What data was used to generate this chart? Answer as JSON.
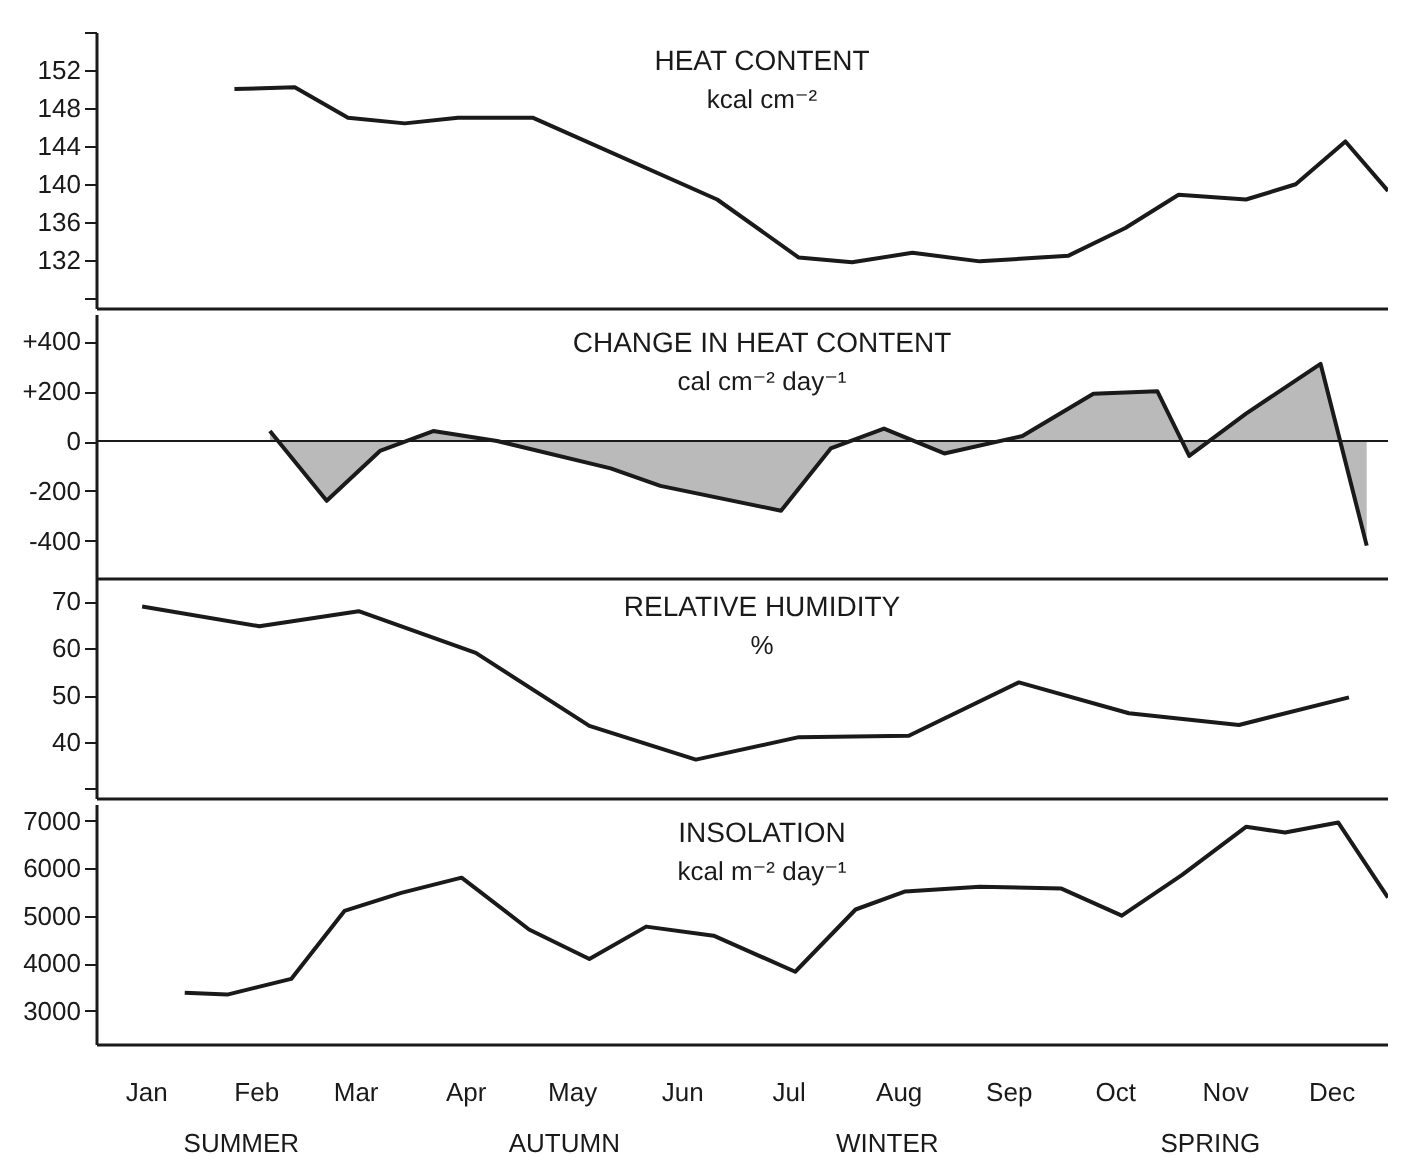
{
  "chart_data": [
    {
      "type": "line",
      "title": "HEAT CONTENT",
      "subtitle": "kcal cm⁻²",
      "tick_labels": "y",
      "xlim": [
        "--01-01",
        "--12-31"
      ],
      "xticks": [
        {
          "value": "--01-15",
          "label": "Jan"
        },
        {
          "value": "--02-15",
          "label": "Feb"
        },
        {
          "value": "--03-15",
          "label": "Mar"
        },
        {
          "value": "--04-15",
          "label": "Apr"
        },
        {
          "value": "--05-15",
          "label": "May"
        },
        {
          "value": "--06-15",
          "label": "Jun"
        },
        {
          "value": "--07-15",
          "label": "Jul"
        },
        {
          "value": "--08-15",
          "label": "Aug"
        },
        {
          "value": "--09-15",
          "label": "Sep"
        },
        {
          "value": "--10-15",
          "label": "Oct"
        },
        {
          "value": "--11-15",
          "label": "Nov"
        },
        {
          "value": "--12-15",
          "label": "Dec"
        }
      ],
      "ylim": [
        127,
        156
      ],
      "yticks": [
        {
          "value": 128,
          "label": null
        },
        132,
        136,
        140,
        144,
        148,
        152,
        {
          "value": 156,
          "label": null
        }
      ],
      "x": [
        "--02-09",
        "--02-26",
        "--03-13",
        "--03-29",
        "--04-13",
        "--05-04",
        "--06-25",
        "--07-18",
        "--08-02",
        "--08-19",
        "--09-07",
        "--10-02",
        "--10-18",
        "--11-02",
        "--11-21",
        "--12-05",
        "--12-19",
        "--12-31"
      ],
      "series": [
        {
          "color": "#1a1a1a",
          "values": [
            150,
            150.2,
            147,
            146.4,
            147,
            147,
            138.4,
            132.3,
            131.8,
            132.8,
            131.9,
            132.5,
            135.4,
            138.9,
            138.4,
            140,
            144.5,
            139.3
          ]
        }
      ]
    },
    {
      "type": "area",
      "title": "CHANGE IN HEAT CONTENT",
      "subtitle": "cal cm⁻² day⁻¹",
      "tick_labels": "y",
      "xlim": [
        "--01-01",
        "--12-31"
      ],
      "xticks": [
        {
          "value": "--01-15",
          "label": "Jan"
        },
        {
          "value": "--02-15",
          "label": "Feb"
        },
        {
          "value": "--03-15",
          "label": "Mar"
        },
        {
          "value": "--04-15",
          "label": "Apr"
        },
        {
          "value": "--05-15",
          "label": "May"
        },
        {
          "value": "--06-15",
          "label": "Jun"
        },
        {
          "value": "--07-15",
          "label": "Jul"
        },
        {
          "value": "--08-15",
          "label": "Aug"
        },
        {
          "value": "--09-15",
          "label": "Sep"
        },
        {
          "value": "--10-15",
          "label": "Oct"
        },
        {
          "value": "--11-15",
          "label": "Nov"
        },
        {
          "value": "--12-15",
          "label": "Dec"
        }
      ],
      "ylim": [
        -550,
        510
      ],
      "yticks": [
        {
          "value": -400,
          "label": "-400"
        },
        {
          "value": -200,
          "label": "-200"
        },
        0,
        {
          "value": 200,
          "label": "+200"
        },
        {
          "value": 400,
          "label": "+400"
        }
      ],
      "ref_lines": [
        {
          "axis": "y",
          "value": 0,
          "color": "#1a1a1a"
        }
      ],
      "x": [
        "--02-19",
        "--03-07",
        "--03-22",
        "--04-06",
        "--04-24",
        "--05-26",
        "--06-09",
        "--07-13",
        "--07-27",
        "--08-11",
        "--08-28",
        "--09-19",
        "--10-09",
        "--10-27",
        "--11-05",
        "--11-21",
        "--12-12",
        "--12-25"
      ],
      "series": [
        {
          "color": "#1a1a1a",
          "values": [
            40,
            -240,
            -40,
            40,
            0,
            -110,
            -180,
            -280,
            -30,
            50,
            -50,
            20,
            190,
            200,
            -60,
            110,
            310,
            -420
          ]
        }
      ]
    },
    {
      "type": "line",
      "title": "RELATIVE HUMIDITY",
      "subtitle": "%",
      "tick_labels": "y",
      "xlim": [
        "--01-01",
        "--12-31"
      ],
      "xticks": [
        {
          "value": "--01-15",
          "label": "Jan"
        },
        {
          "value": "--02-15",
          "label": "Feb"
        },
        {
          "value": "--03-15",
          "label": "Mar"
        },
        {
          "value": "--04-15",
          "label": "Apr"
        },
        {
          "value": "--05-15",
          "label": "May"
        },
        {
          "value": "--06-15",
          "label": "Jun"
        },
        {
          "value": "--07-15",
          "label": "Jul"
        },
        {
          "value": "--08-15",
          "label": "Aug"
        },
        {
          "value": "--09-15",
          "label": "Sep"
        },
        {
          "value": "--10-15",
          "label": "Oct"
        },
        {
          "value": "--11-15",
          "label": "Nov"
        },
        {
          "value": "--12-15",
          "label": "Dec"
        }
      ],
      "ylim": [
        28,
        75
      ],
      "yticks": [
        {
          "value": 30,
          "label": null
        },
        40,
        50,
        60,
        70
      ],
      "x": [
        "--01-14",
        "--02-16",
        "--03-16",
        "--04-18",
        "--05-20",
        "--06-19",
        "--07-18",
        "--08-18",
        "--09-18",
        "--10-19",
        "--11-19",
        "--12-20"
      ],
      "series": [
        {
          "color": "#1a1a1a",
          "values": [
            68.9,
            64.7,
            67.9,
            59,
            43.4,
            36.2,
            41,
            41.3,
            52.7,
            46.1,
            43.6,
            49.5
          ]
        }
      ]
    },
    {
      "type": "line",
      "title": "INSOLATION",
      "subtitle": "kcal m⁻² day⁻¹",
      "xlim": [
        "--01-01",
        "--12-31"
      ],
      "xticks": [
        {
          "value": "--01-15",
          "label": "Jan"
        },
        {
          "value": "--02-15",
          "label": "Feb"
        },
        {
          "value": "--03-15",
          "label": "Mar"
        },
        {
          "value": "--04-15",
          "label": "Apr"
        },
        {
          "value": "--05-15",
          "label": "May"
        },
        {
          "value": "--06-15",
          "label": "Jun"
        },
        {
          "value": "--07-15",
          "label": "Jul"
        },
        {
          "value": "--08-15",
          "label": "Aug"
        },
        {
          "value": "--09-15",
          "label": "Sep"
        },
        {
          "value": "--10-15",
          "label": "Oct"
        },
        {
          "value": "--11-15",
          "label": "Nov"
        },
        {
          "value": "--12-15",
          "label": "Dec"
        }
      ],
      "ylim": [
        2300,
        7350
      ],
      "yticks": [
        3000,
        4000,
        5000,
        6000,
        7000
      ],
      "annotations": [
        "SUMMER",
        "AUTUMN",
        "WINTER",
        "SPRING"
      ],
      "x": [
        "--01-26",
        "--02-07",
        "--02-25",
        "--03-12",
        "--03-28",
        "--04-14",
        "--05-03",
        "--05-20",
        "--06-05",
        "--06-24",
        "--07-17",
        "--08-03",
        "--08-17",
        "--09-07",
        "--09-30",
        "--10-17",
        "--11-03",
        "--11-21",
        "--12-02",
        "--12-17",
        "--12-31"
      ],
      "series": [
        {
          "color": "#1a1a1a",
          "values": [
            3380,
            3340,
            3670,
            5100,
            5480,
            5800,
            4710,
            4090,
            4770,
            4580,
            3820,
            5130,
            5510,
            5610,
            5570,
            5000,
            5860,
            6870,
            6750,
            6960,
            5380
          ]
        }
      ]
    }
  ]
}
